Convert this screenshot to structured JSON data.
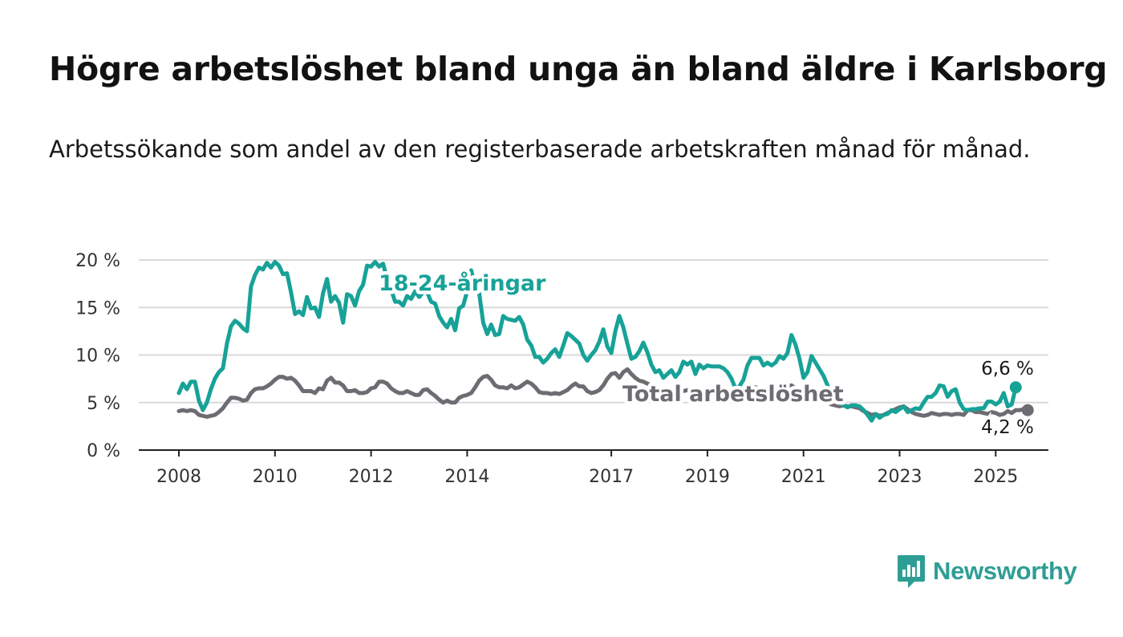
{
  "title": "Högre arbetslöshet bland unga än bland äldre i Karlsborg",
  "subtitle": "Arbetssökande som andel av den registerbaserade arbetskraften månad för månad.",
  "brand": {
    "name": "Newsworthy",
    "icon": "newsworthy-logo-icon"
  },
  "colors": {
    "youth": "#17a298",
    "total": "#6e6c72",
    "grid": "#d9d9d9",
    "axis": "#222222"
  },
  "chart_data": {
    "type": "line",
    "x_start": "2008-01",
    "x_step": "month",
    "ylim": [
      0,
      20
    ],
    "y_ticks": [
      0,
      5,
      10,
      15,
      20
    ],
    "y_tick_labels": [
      "0 %",
      "5 %",
      "10 %",
      "15 %",
      "20 %"
    ],
    "x_ticks": [
      2008,
      2010,
      2012,
      2014,
      2017,
      2019,
      2021,
      2023,
      2025
    ],
    "x_tick_labels": [
      "2008",
      "2010",
      "2012",
      "2014",
      "2017",
      "2019",
      "2021",
      "2023",
      "2025"
    ],
    "grid": "horizontal",
    "series": [
      {
        "name": "18-24-åringar",
        "end_label": "6,6 %",
        "values": [
          6.0,
          7.0,
          6.4,
          7.2,
          7.2,
          5.2,
          4.2,
          5.0,
          6.4,
          7.5,
          8.2,
          8.6,
          11.2,
          13.0,
          13.6,
          13.3,
          12.8,
          12.5,
          17.2,
          18.4,
          19.2,
          19.0,
          19.7,
          19.2,
          19.8,
          19.4,
          18.5,
          18.6,
          16.6,
          14.3,
          14.6,
          14.2,
          16.1,
          14.9,
          15.0,
          14.0,
          16.5,
          18.0,
          15.6,
          16.2,
          15.5,
          13.4,
          16.4,
          16.2,
          15.2,
          16.7,
          17.4,
          19.4,
          19.3,
          19.8,
          19.3,
          19.6,
          18.0,
          16.9,
          15.6,
          15.6,
          15.2,
          16.2,
          15.9,
          16.7,
          16.1,
          16.6,
          16.6,
          15.6,
          15.4,
          14.1,
          13.4,
          12.9,
          13.8,
          12.6,
          14.9,
          15.2,
          16.7,
          18.9,
          17.2,
          16.5,
          13.4,
          12.2,
          13.2,
          12.1,
          12.2,
          14.1,
          13.8,
          13.7,
          13.6,
          14.0,
          13.2,
          11.6,
          11.0,
          9.8,
          9.8,
          9.2,
          9.6,
          10.2,
          10.6,
          9.8,
          11.0,
          12.3,
          12.0,
          11.6,
          11.2,
          10.0,
          9.4,
          10.0,
          10.5,
          11.4,
          12.7,
          10.9,
          10.2,
          12.5,
          14.1,
          12.9,
          11.2,
          9.6,
          9.8,
          10.4,
          11.3,
          10.3,
          9.0,
          8.2,
          8.4,
          7.6,
          8.0,
          8.4,
          7.7,
          8.2,
          9.3,
          9.0,
          9.3,
          8.0,
          9.0,
          8.6,
          8.9,
          8.8,
          8.8,
          8.8,
          8.6,
          8.2,
          7.5,
          6.5,
          6.7,
          7.4,
          8.9,
          9.7,
          9.7,
          9.7,
          8.9,
          9.2,
          8.9,
          9.2,
          9.9,
          9.6,
          10.2,
          12.1,
          11.1,
          9.6,
          7.6,
          8.2,
          9.9,
          9.2,
          8.5,
          7.8,
          6.8,
          5.6,
          5.4,
          5.0,
          4.7,
          4.5,
          4.7,
          4.7,
          4.6,
          4.2,
          3.7,
          3.1,
          3.8,
          3.4,
          3.7,
          3.8,
          4.2,
          4.0,
          4.3,
          4.6,
          4.0,
          4.2,
          4.4,
          4.3,
          5.0,
          5.6,
          5.6,
          6.0,
          6.8,
          6.7,
          5.6,
          6.2,
          6.4,
          5.0,
          4.3,
          4.2,
          4.3,
          4.3,
          4.4,
          4.4,
          5.1,
          5.1,
          4.8,
          5.1,
          6.0,
          4.6,
          4.8,
          6.6
        ]
      },
      {
        "name": "Total arbetslöshet",
        "end_label": "4,2 %",
        "values": [
          4.1,
          4.2,
          4.1,
          4.2,
          4.1,
          3.7,
          3.6,
          3.5,
          3.6,
          3.7,
          4.0,
          4.4,
          5.0,
          5.5,
          5.5,
          5.4,
          5.2,
          5.3,
          6.0,
          6.4,
          6.5,
          6.5,
          6.7,
          7.0,
          7.4,
          7.7,
          7.7,
          7.5,
          7.6,
          7.3,
          6.8,
          6.2,
          6.2,
          6.2,
          6.0,
          6.5,
          6.4,
          7.3,
          7.6,
          7.1,
          7.1,
          6.8,
          6.2,
          6.2,
          6.3,
          6.0,
          6.0,
          6.1,
          6.5,
          6.6,
          7.2,
          7.2,
          7.0,
          6.5,
          6.2,
          6.0,
          6.0,
          6.2,
          6.0,
          5.8,
          5.8,
          6.3,
          6.4,
          6.0,
          5.7,
          5.3,
          5.0,
          5.2,
          5.0,
          5.0,
          5.5,
          5.7,
          5.8,
          6.0,
          6.6,
          7.3,
          7.7,
          7.8,
          7.4,
          6.8,
          6.6,
          6.6,
          6.5,
          6.8,
          6.5,
          6.6,
          6.9,
          7.2,
          7.0,
          6.6,
          6.1,
          6.0,
          6.0,
          5.9,
          6.0,
          5.9,
          6.1,
          6.3,
          6.7,
          7.0,
          6.7,
          6.7,
          6.2,
          6.0,
          6.1,
          6.3,
          6.8,
          7.5,
          8.0,
          8.1,
          7.6,
          8.2,
          8.5,
          8.0,
          7.6,
          7.3,
          7.2,
          7.0,
          6.8,
          6.5,
          6.3,
          6.3,
          6.1,
          6.0,
          5.9,
          6.1,
          6.2,
          6.3,
          6.3,
          6.2,
          6.1,
          6.3,
          6.2,
          6.3,
          6.4,
          6.3,
          6.3,
          6.2,
          6.0,
          5.9,
          6.0,
          6.2,
          6.4,
          6.6,
          6.6,
          6.5,
          6.4,
          6.4,
          6.3,
          6.3,
          6.5,
          6.6,
          6.7,
          6.8,
          6.5,
          6.3,
          6.0,
          5.8,
          5.7,
          5.6,
          5.5,
          5.3,
          5.0,
          4.8,
          4.7,
          4.6,
          4.7,
          4.6,
          4.6,
          4.5,
          4.4,
          4.1,
          3.9,
          3.7,
          3.8,
          3.6,
          3.7,
          3.9,
          4.1,
          4.3,
          4.5,
          4.6,
          4.3,
          4.0,
          3.8,
          3.7,
          3.6,
          3.7,
          3.9,
          3.8,
          3.7,
          3.8,
          3.8,
          3.7,
          3.8,
          3.8,
          3.7,
          4.2,
          4.2,
          4.0,
          4.0,
          3.9,
          3.8,
          4.0,
          3.9,
          3.7,
          3.8,
          4.1,
          3.9,
          4.2,
          4.2,
          4.3,
          4.2
        ]
      }
    ]
  }
}
